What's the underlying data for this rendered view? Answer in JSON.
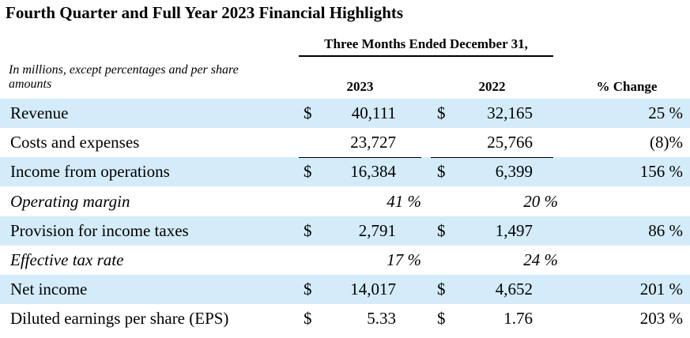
{
  "title": "Fourth Quarter and Full Year 2023 Financial Highlights",
  "period_header": "Three Months Ended December 31,",
  "units_note": "In millions, except percentages and per share amounts",
  "columns": {
    "y2023": "2023",
    "y2022": "2022",
    "change": "% Change"
  },
  "rows": [
    {
      "label": "Revenue",
      "italic": false,
      "shaded": true,
      "d2023": "$",
      "v2023": "40,111",
      "d2022": "$",
      "v2022": "32,165",
      "change": "25 %"
    },
    {
      "label": "Costs and expenses",
      "italic": false,
      "shaded": false,
      "d2023": "",
      "v2023": "23,727",
      "d2022": "",
      "v2022": "25,766",
      "change": "(8)%"
    },
    {
      "label": "Income from operations",
      "italic": false,
      "shaded": true,
      "d2023": "$",
      "v2023": "16,384",
      "d2022": "$",
      "v2022": "6,399",
      "change": "156 %"
    },
    {
      "label": "Operating margin",
      "italic": true,
      "shaded": false,
      "d2023": "",
      "v2023": "41 %",
      "d2022": "",
      "v2022": "20 %",
      "change": ""
    },
    {
      "label": "Provision for income taxes",
      "italic": false,
      "shaded": true,
      "d2023": "$",
      "v2023": "2,791",
      "d2022": "$",
      "v2022": "1,497",
      "change": "86 %"
    },
    {
      "label": "Effective tax rate",
      "italic": true,
      "shaded": false,
      "d2023": "",
      "v2023": "17 %",
      "d2022": "",
      "v2022": "24 %",
      "change": ""
    },
    {
      "label": "Net income",
      "italic": false,
      "shaded": true,
      "d2023": "$",
      "v2023": "14,017",
      "d2022": "$",
      "v2022": "4,652",
      "change": "201 %"
    },
    {
      "label": "Diluted earnings per share (EPS)",
      "italic": false,
      "shaded": false,
      "d2023": "$",
      "v2023": "5.33",
      "d2022": "$",
      "v2022": "1.76",
      "change": "203 %"
    }
  ],
  "colors": {
    "row_shade": "#d4ecf9",
    "text": "#000000"
  }
}
